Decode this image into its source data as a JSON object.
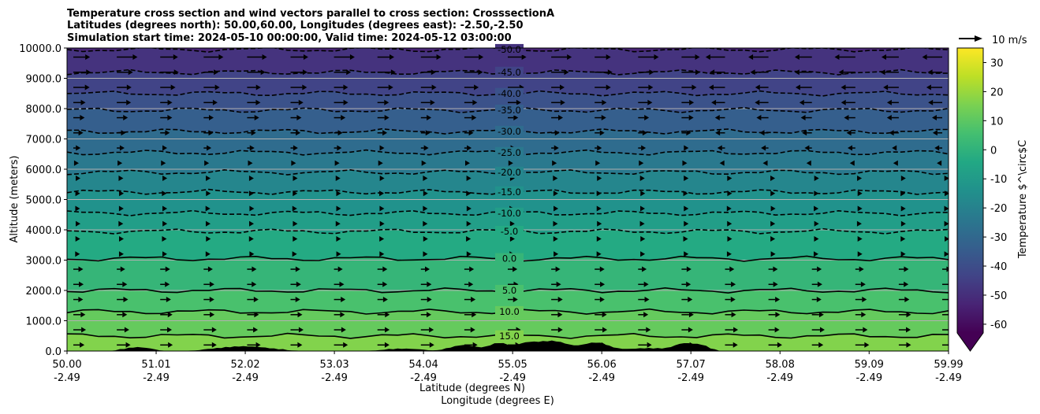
{
  "chart_data": {
    "type": "contour",
    "title_lines": [
      "Temperature cross section and wind vectors parallel to cross section: CrosssectionA",
      "Latitudes (degrees north): 50.00,60.00, Longitudes (degrees east): -2.50,-2.50",
      "Simulation start time: 2024-05-10 00:00:00, Valid time: 2024-05-12 03:00:00"
    ],
    "ylabel": "Altitude (meters)",
    "xlabel_lines": [
      "Latitude (degrees N)",
      "Longitude (degrees E)"
    ],
    "ylim": [
      0,
      10000
    ],
    "xlim": [
      50.0,
      59.99
    ],
    "x_ticks": [
      {
        "lat": "50.00",
        "lon": "-2.49"
      },
      {
        "lat": "51.01",
        "lon": "-2.49"
      },
      {
        "lat": "52.02",
        "lon": "-2.49"
      },
      {
        "lat": "53.03",
        "lon": "-2.49"
      },
      {
        "lat": "54.04",
        "lon": "-2.49"
      },
      {
        "lat": "55.05",
        "lon": "-2.49"
      },
      {
        "lat": "56.06",
        "lon": "-2.49"
      },
      {
        "lat": "57.07",
        "lon": "-2.49"
      },
      {
        "lat": "58.08",
        "lon": "-2.49"
      },
      {
        "lat": "59.09",
        "lon": "-2.49"
      },
      {
        "lat": "59.99",
        "lon": "-2.49"
      }
    ],
    "y_ticks": [
      "0.0",
      "1000.0",
      "2000.0",
      "3000.0",
      "4000.0",
      "5000.0",
      "6000.0",
      "7000.0",
      "8000.0",
      "9000.0",
      "10000.0"
    ],
    "grid": "horizontal",
    "contours": [
      {
        "level": -50.0,
        "label": "-50.0",
        "altitude_m": 9950,
        "style": "dashed"
      },
      {
        "level": -45.0,
        "label": "-45.0",
        "altitude_m": 9200,
        "style": "dashed"
      },
      {
        "level": -40.0,
        "label": "-40.0",
        "altitude_m": 8500,
        "style": "dashed"
      },
      {
        "level": -35.0,
        "label": "-35.0",
        "altitude_m": 7950,
        "style": "dashed"
      },
      {
        "level": -30.0,
        "label": "-30.0",
        "altitude_m": 7250,
        "style": "dashed"
      },
      {
        "level": -25.0,
        "label": "-25.0",
        "altitude_m": 6550,
        "style": "dashed"
      },
      {
        "level": -20.0,
        "label": "-20.0",
        "altitude_m": 5900,
        "style": "dashed"
      },
      {
        "level": -15.0,
        "label": "-15.0",
        "altitude_m": 5250,
        "style": "dashed"
      },
      {
        "level": -10.0,
        "label": "-10.0",
        "altitude_m": 4550,
        "style": "dashed"
      },
      {
        "level": -5.0,
        "label": "-5.0",
        "altitude_m": 3950,
        "style": "dashed"
      },
      {
        "level": 0.0,
        "label": "0.0",
        "altitude_m": 3050,
        "style": "solid"
      },
      {
        "level": 5.0,
        "label": "5.0",
        "altitude_m": 2000,
        "style": "solid"
      },
      {
        "level": 10.0,
        "label": "10.0",
        "altitude_m": 1300,
        "style": "solid"
      },
      {
        "level": 15.0,
        "label": "15.0",
        "altitude_m": 500,
        "style": "solid"
      }
    ],
    "colorbar": {
      "label": "Temperature $^\\circ$C",
      "ticks": [
        "-60",
        "-50",
        "-40",
        "-30",
        "-20",
        "-10",
        "0",
        "10",
        "20",
        "30"
      ],
      "range": [
        -63,
        35
      ],
      "extend": "min"
    },
    "quiver_key": {
      "label": "10 m/s",
      "speed_ms": 10
    },
    "colormap": "viridis"
  }
}
